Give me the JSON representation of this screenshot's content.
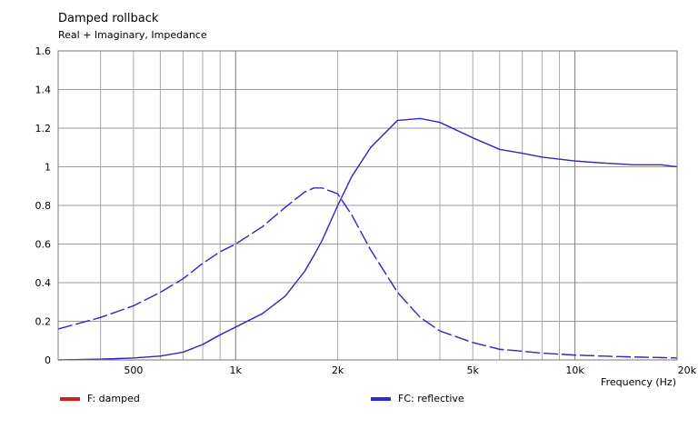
{
  "chart_data": {
    "type": "line",
    "title": "Damped rollback",
    "subtitle": "Real + Imaginary, Impedance",
    "xlabel": "Frequency  (Hz)",
    "ylabel": "",
    "x_scale": "log",
    "xlim": [
      300,
      20000
    ],
    "ylim": [
      0,
      1.6
    ],
    "grid": true,
    "legend_position": "bottom",
    "x_ticks": [
      {
        "value": 500,
        "label": "500"
      },
      {
        "value": 1000,
        "label": "1k"
      },
      {
        "value": 2000,
        "label": "2k"
      },
      {
        "value": 5000,
        "label": "5k"
      },
      {
        "value": 10000,
        "label": "10k"
      },
      {
        "value": 20000,
        "label": "20k"
      }
    ],
    "y_ticks": [
      {
        "value": 0,
        "label": "0"
      },
      {
        "value": 0.2,
        "label": "0.2"
      },
      {
        "value": 0.4,
        "label": "0.4"
      },
      {
        "value": 0.6,
        "label": "0.6"
      },
      {
        "value": 0.8,
        "label": "0.8"
      },
      {
        "value": 1,
        "label": "1"
      },
      {
        "value": 1.2,
        "label": "1.2"
      },
      {
        "value": 1.4,
        "label": "1.4"
      },
      {
        "value": 1.6,
        "label": "1.6"
      }
    ],
    "x": [
      300,
      400,
      500,
      600,
      700,
      800,
      900,
      1000,
      1200,
      1400,
      1600,
      1700,
      1800,
      2000,
      2200,
      2500,
      3000,
      3500,
      4000,
      5000,
      6000,
      7000,
      8000,
      10000,
      12000,
      15000,
      18000,
      20000
    ],
    "series": [
      {
        "name": "F: damped",
        "color": "#cc2222",
        "curves": [
          [
            0.0,
            0.004,
            0.01,
            0.02,
            0.04,
            0.08,
            0.13,
            0.17,
            0.24,
            0.33,
            0.46,
            0.54,
            0.62,
            0.8,
            0.95,
            1.1,
            1.24,
            1.25,
            1.23,
            1.15,
            1.09,
            1.07,
            1.05,
            1.03,
            1.02,
            1.01,
            1.01,
            1.0
          ],
          [
            0.16,
            0.22,
            0.28,
            0.35,
            0.42,
            0.5,
            0.56,
            0.6,
            0.69,
            0.79,
            0.87,
            0.89,
            0.89,
            0.86,
            0.75,
            0.57,
            0.35,
            0.22,
            0.15,
            0.09,
            0.055,
            0.045,
            0.035,
            0.025,
            0.02,
            0.015,
            0.012,
            0.01
          ]
        ]
      },
      {
        "name": "FC: reflective",
        "color": "#2b2bd6",
        "curves": [
          [
            0.0,
            0.004,
            0.01,
            0.02,
            0.04,
            0.08,
            0.13,
            0.17,
            0.24,
            0.33,
            0.46,
            0.54,
            0.62,
            0.8,
            0.95,
            1.1,
            1.24,
            1.25,
            1.23,
            1.15,
            1.09,
            1.07,
            1.05,
            1.03,
            1.02,
            1.01,
            1.01,
            1.0
          ],
          [
            0.16,
            0.22,
            0.28,
            0.35,
            0.42,
            0.5,
            0.56,
            0.6,
            0.69,
            0.79,
            0.87,
            0.89,
            0.89,
            0.86,
            0.75,
            0.57,
            0.35,
            0.22,
            0.15,
            0.09,
            0.055,
            0.045,
            0.035,
            0.025,
            0.02,
            0.015,
            0.012,
            0.01
          ]
        ]
      }
    ]
  }
}
